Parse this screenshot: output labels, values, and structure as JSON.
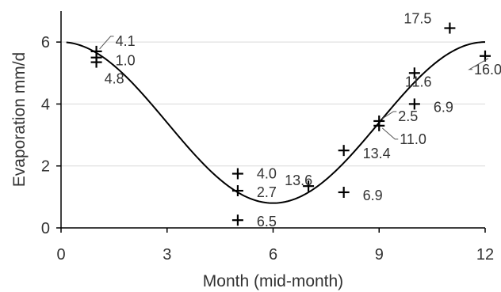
{
  "chart_data": {
    "type": "scatter",
    "xlabel": "Month  (mid-month)",
    "ylabel": "Evaporation  mm/d",
    "xlim": [
      0,
      12
    ],
    "ylim": [
      0,
      7
    ],
    "xticks": [
      "0",
      "3",
      "6",
      "9",
      "12"
    ],
    "yticks": [
      "0",
      "2",
      "4",
      "6"
    ],
    "grid": "horizontal",
    "legend": "none",
    "colors": {
      "points": "#000000",
      "curve": "#000000",
      "grid": "#d9d9d9",
      "text": "#333333"
    },
    "points": [
      {
        "x": 1,
        "y": 5.7,
        "label": "4.1"
      },
      {
        "x": 1,
        "y": 5.5,
        "label": "1.0"
      },
      {
        "x": 1,
        "y": 5.35,
        "label": "4.8"
      },
      {
        "x": 5,
        "y": 1.75,
        "label": "4.0"
      },
      {
        "x": 5,
        "y": 1.2,
        "label": "2.7"
      },
      {
        "x": 5,
        "y": 0.25,
        "label": "6.5"
      },
      {
        "x": 7,
        "y": 1.35,
        "label": "13.6"
      },
      {
        "x": 8,
        "y": 2.5,
        "label": "13.4"
      },
      {
        "x": 8,
        "y": 1.15,
        "label": "6.9"
      },
      {
        "x": 9,
        "y": 3.45,
        "label": "2.5"
      },
      {
        "x": 9,
        "y": 3.3,
        "label": "11.0"
      },
      {
        "x": 10,
        "y": 5.0,
        "label": "11.6"
      },
      {
        "x": 10,
        "y": 4.0,
        "label": "6.9"
      },
      {
        "x": 11,
        "y": 6.45,
        "label": "17.5"
      },
      {
        "x": 12,
        "y": 5.55,
        "label": "16.0"
      }
    ],
    "curve": {
      "type": "cosine",
      "mean": 3.4,
      "amplitude": 2.6,
      "period": 12,
      "peak_x": 0
    }
  }
}
